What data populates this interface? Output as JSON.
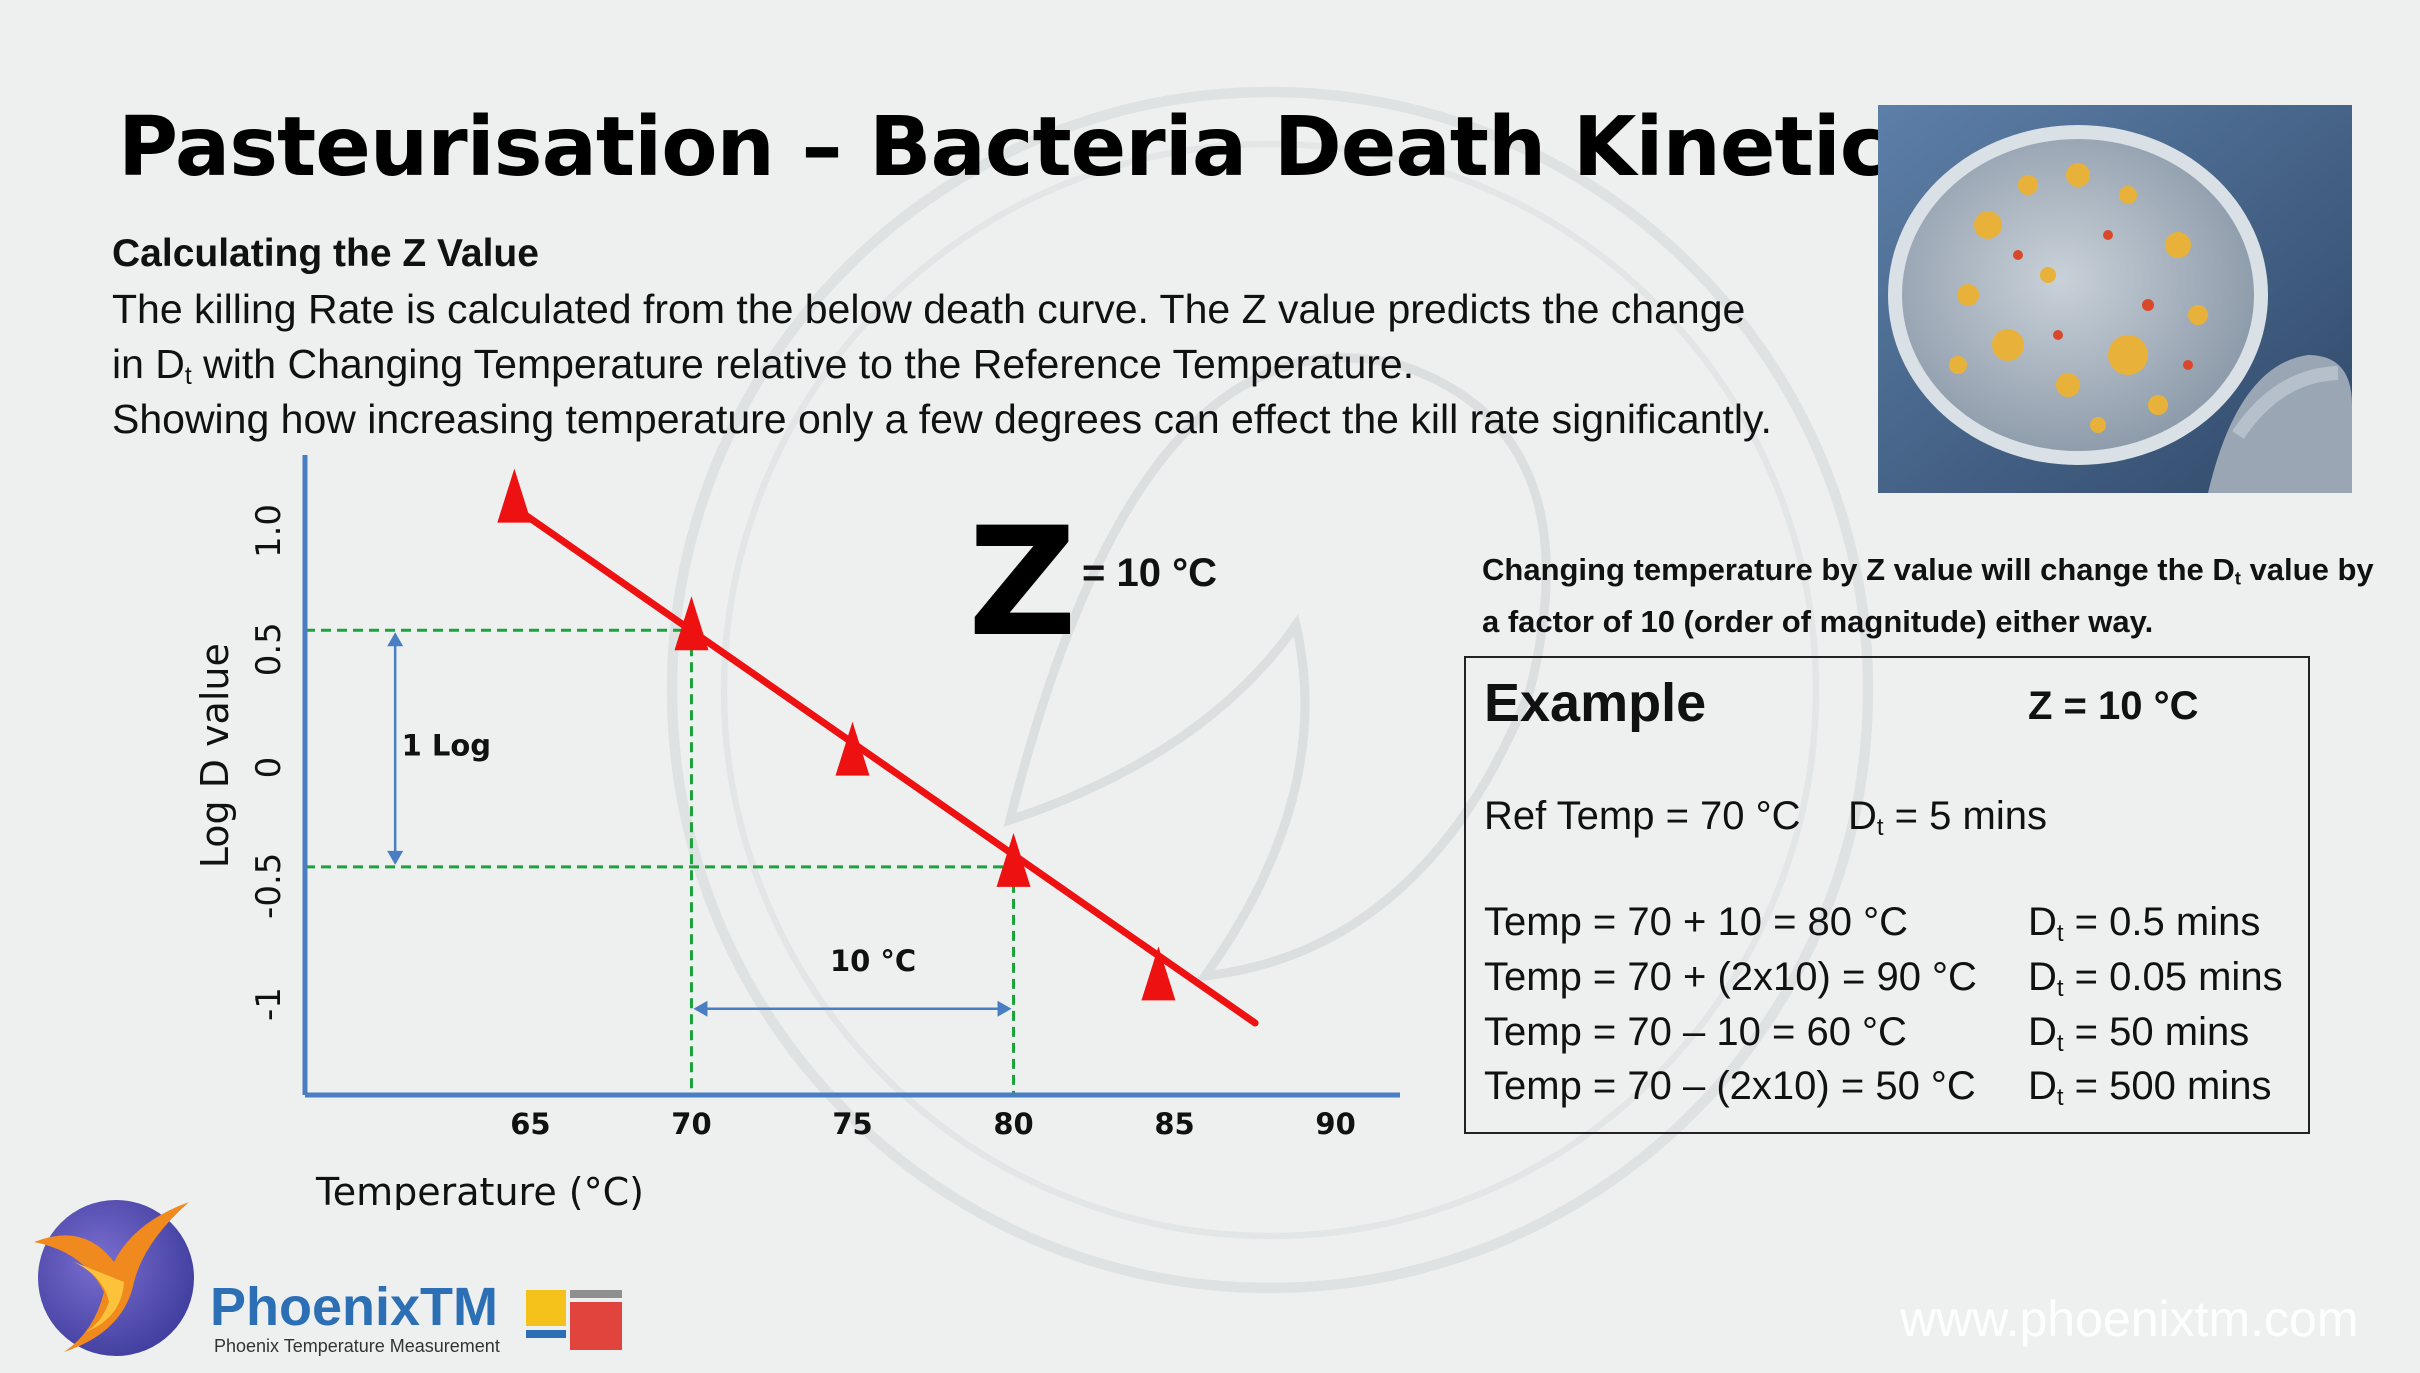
{
  "slide": {
    "title": "Pasteurisation – Bacteria Death Kinetics",
    "subtitle": "Calculating the Z Value",
    "intro": {
      "line1": "The killing Rate is calculated from the below death curve. The Z value predicts the change",
      "line2_a": "in D",
      "line2_sub": "t",
      "line2_b": " with Changing Temperature relative to the Reference Temperature.",
      "line3": "Showing how increasing temperature only a few degrees can effect the kill rate significantly."
    },
    "photo_icon": "petri-dish-bacteria-photo",
    "z_label": "Z",
    "z_value": "= 10 °C",
    "note": {
      "a": "Changing temperature by Z value will change the D",
      "sub": "t",
      "b": " value by a factor of 10 (order of magnitude) either way."
    },
    "example": {
      "title": "Example",
      "z": "Z = 10 °C",
      "ref_temp": "Ref Temp = 70 °C",
      "ref_dt_a": "D",
      "ref_dt_sub": "t",
      "ref_dt_b": " = 5 mins",
      "rows": [
        {
          "temp": "Temp = 70 + 10 = 80 °C",
          "dt_a": "D",
          "dt_sub": "t",
          "dt_b": " = 0.5 mins"
        },
        {
          "temp": "Temp = 70 + (2x10) = 90 °C",
          "dt_a": "D",
          "dt_sub": "t",
          "dt_b": " = 0.05 mins"
        },
        {
          "temp": "Temp = 70 – 10 = 60 °C",
          "dt_a": "D",
          "dt_sub": "t",
          "dt_b": " = 50 mins"
        },
        {
          "temp": "Temp = 70 – (2x10) = 50 °C",
          "dt_a": "D",
          "dt_sub": "t",
          "dt_b": " = 500 mins"
        }
      ]
    },
    "brand": {
      "name": "PhoenixTM",
      "tagline": "Phoenix Temperature Measurement",
      "logo_icon": "phoenix-bird-logo",
      "website": "www.phoenixtm.com"
    },
    "colors": {
      "line": "#ee1111",
      "marker": "#ee1111",
      "axis": "#4a7ec2",
      "guide": "#1aa33a",
      "arrow": "#4a7ec2",
      "brand_blue": "#2c6fb5"
    }
  },
  "chart_data": {
    "type": "line",
    "xlabel": "Temperature (°C)",
    "ylabel": "Log D value",
    "xlim": [
      58,
      92
    ],
    "ylim": [
      -1.3,
      1.3
    ],
    "x_ticks": [
      {
        "value": 65,
        "label": "65"
      },
      {
        "value": 70,
        "label": "70"
      },
      {
        "value": 75,
        "label": "75"
      },
      {
        "value": 80,
        "label": "80"
      },
      {
        "value": 85,
        "label": "85"
      },
      {
        "value": 90,
        "label": "90"
      }
    ],
    "y_ticks": [
      {
        "value": 1.0,
        "label": "1.0"
      },
      {
        "value": 0.5,
        "label": "0.5"
      },
      {
        "value": 0,
        "label": "0"
      },
      {
        "value": -0.5,
        "label": "-0.5"
      },
      {
        "value": -1,
        "label": "-1"
      }
    ],
    "series": [
      {
        "x": [
          64.5,
          87.5
        ],
        "y": [
          1.1,
          -1.08
        ]
      }
    ],
    "markers": [
      {
        "x": 64.5,
        "y": 1.12
      },
      {
        "x": 70,
        "y": 0.58
      },
      {
        "x": 75,
        "y": 0.05
      },
      {
        "x": 80,
        "y": -0.42
      },
      {
        "x": 84.5,
        "y": -0.9
      }
    ],
    "guides": {
      "upper_y": 0.58,
      "lower_y": -0.42,
      "left_x": 70,
      "right_x": 80
    },
    "annotations": [
      {
        "text": "1 Log",
        "x": 61,
        "y": 0.05
      },
      {
        "text": "10 °C",
        "x": 74.3,
        "y": -0.86
      }
    ],
    "log_arrow": {
      "x": 60.8,
      "y1": 0.58,
      "y2": -0.42
    },
    "temp_arrow": {
      "y": -1.02,
      "x1": 70,
      "x2": 80
    }
  }
}
